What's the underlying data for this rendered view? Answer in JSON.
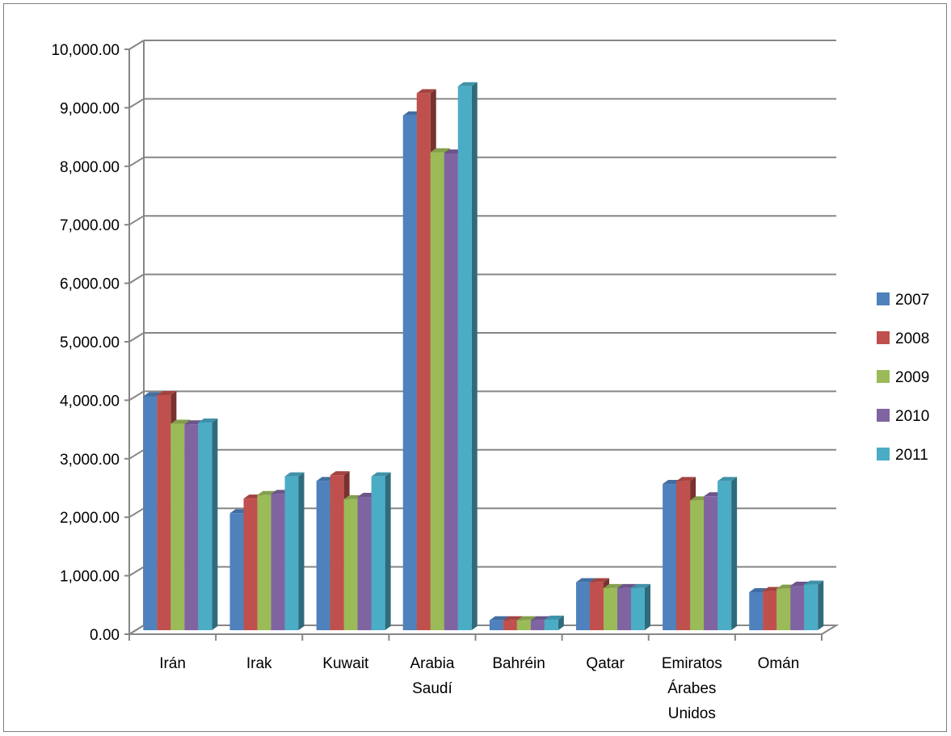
{
  "chart_data": {
    "type": "bar",
    "style": "3d-clustered-column",
    "title": "",
    "xlabel": "",
    "ylabel": "",
    "ylim": [
      0,
      10000
    ],
    "ytick_step": 1000,
    "ytick_labels": [
      "0.00",
      "1,000.00",
      "2,000.00",
      "3,000.00",
      "4,000.00",
      "5,000.00",
      "6,000.00",
      "7,000.00",
      "8,000.00",
      "9,000.00",
      "10,000.00"
    ],
    "grid": true,
    "legend_position": "right",
    "categories": [
      [
        "Irán"
      ],
      [
        "Irak"
      ],
      [
        "Kuwait"
      ],
      [
        "Arabia",
        "Saudí"
      ],
      [
        "Bahréin"
      ],
      [
        "Qatar"
      ],
      [
        "Emiratos",
        "Árabes",
        "Unidos"
      ],
      [
        "Omán"
      ]
    ],
    "series": [
      {
        "name": "2007",
        "color": "#4F81BD",
        "values": [
          4000,
          2000,
          2550,
          8800,
          170,
          820,
          2500,
          650
        ]
      },
      {
        "name": "2008",
        "color": "#C0504D",
        "values": [
          4020,
          2250,
          2650,
          9180,
          170,
          820,
          2550,
          670
        ]
      },
      {
        "name": "2009",
        "color": "#9BBB59",
        "values": [
          3530,
          2310,
          2240,
          8170,
          170,
          720,
          2220,
          710
        ]
      },
      {
        "name": "2010",
        "color": "#8064A2",
        "values": [
          3520,
          2330,
          2280,
          8150,
          170,
          720,
          2290,
          760
        ]
      },
      {
        "name": "2011",
        "color": "#4BACC6",
        "values": [
          3550,
          2630,
          2630,
          9300,
          180,
          720,
          2550,
          780
        ]
      }
    ]
  }
}
